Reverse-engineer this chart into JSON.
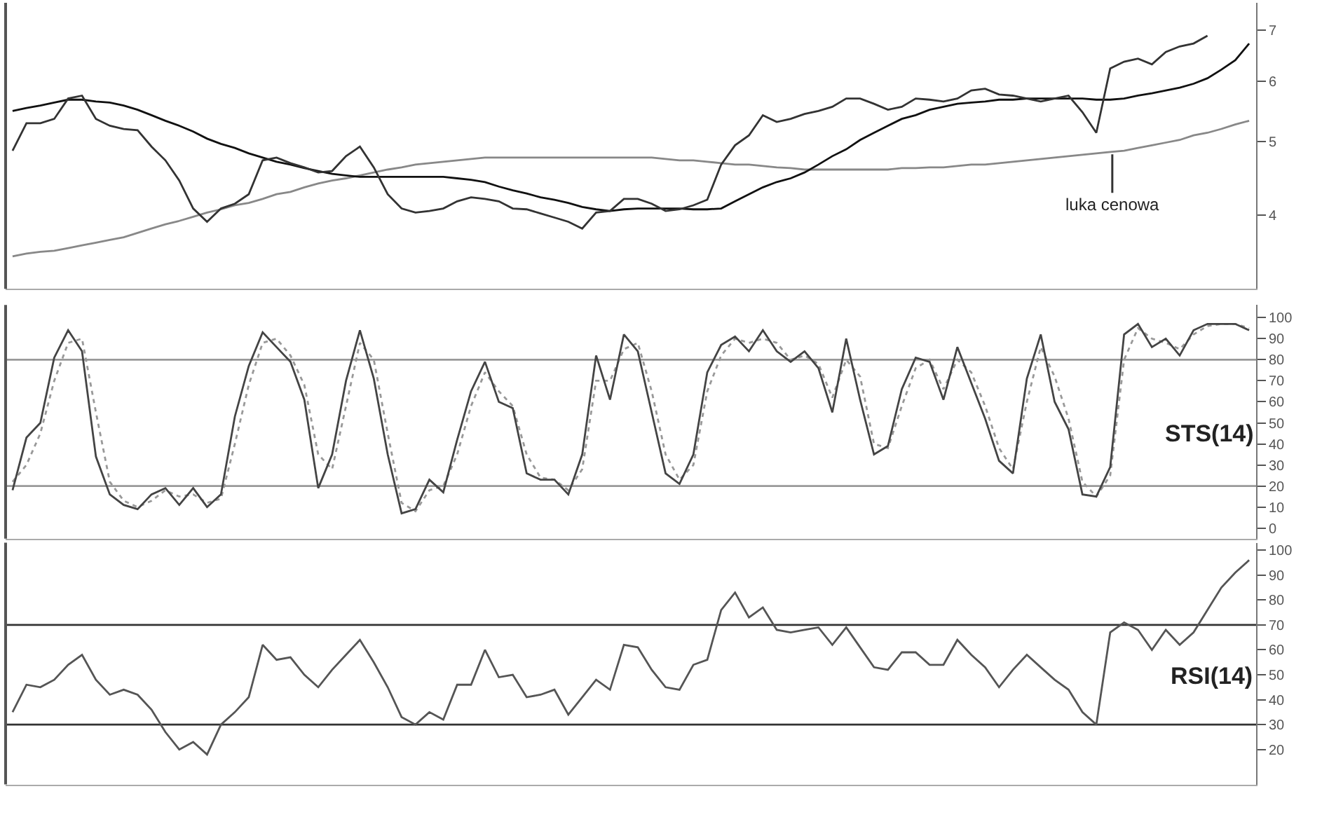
{
  "chart_data": [
    {
      "type": "line",
      "categories": [
        null,
        null,
        null,
        null,
        null,
        null,
        null,
        null,
        null,
        null,
        null,
        null,
        null,
        null,
        null,
        null,
        null,
        null,
        null,
        null,
        null,
        null,
        null,
        null,
        null,
        null,
        null,
        null,
        null,
        null,
        null,
        null,
        null,
        null,
        null,
        null,
        null,
        null,
        null,
        null,
        null,
        null,
        null,
        null,
        null,
        null,
        null,
        null,
        null,
        null,
        null,
        null,
        null,
        null,
        null,
        null,
        null,
        null,
        null,
        null,
        null,
        null,
        null,
        null,
        null,
        null,
        null,
        null,
        null,
        null,
        null,
        null,
        null,
        null,
        null,
        null,
        null,
        null,
        null,
        null,
        null,
        null,
        null,
        null,
        null,
        null,
        null,
        null,
        null,
        null
      ],
      "series": [
        {
          "color": "#888888",
          "values": [
            3.53,
            3.56,
            3.58,
            3.59,
            3.62,
            3.65,
            3.68,
            3.71,
            3.74,
            3.79,
            3.84,
            3.89,
            3.93,
            3.98,
            4.03,
            4.07,
            4.12,
            4.15,
            4.2,
            4.26,
            4.29,
            4.35,
            4.4,
            4.44,
            4.47,
            4.51,
            4.55,
            4.59,
            4.62,
            4.66,
            4.68,
            4.7,
            4.72,
            4.74,
            4.76,
            4.76,
            4.76,
            4.76,
            4.76,
            4.76,
            4.76,
            4.76,
            4.76,
            4.76,
            4.76,
            4.76,
            4.76,
            4.74,
            4.72,
            4.72,
            4.7,
            4.68,
            4.66,
            4.66,
            4.64,
            4.62,
            4.61,
            4.59,
            4.59,
            4.59,
            4.59,
            4.59,
            4.59,
            4.59,
            4.61,
            4.61,
            4.62,
            4.62,
            4.64,
            4.66,
            4.66,
            4.68,
            4.7,
            4.72,
            4.74,
            4.76,
            4.78,
            4.8,
            4.82,
            4.84,
            4.86,
            4.9,
            4.94,
            4.98,
            5.02,
            5.09,
            5.13,
            5.19,
            5.26,
            5.32
          ]
        },
        {
          "color": "#111111",
          "values": [
            5.48,
            5.53,
            5.57,
            5.62,
            5.67,
            5.67,
            5.64,
            5.62,
            5.57,
            5.5,
            5.41,
            5.32,
            5.24,
            5.15,
            5.04,
            4.96,
            4.9,
            4.82,
            4.76,
            4.7,
            4.66,
            4.61,
            4.57,
            4.53,
            4.51,
            4.49,
            4.49,
            4.49,
            4.49,
            4.49,
            4.49,
            4.49,
            4.47,
            4.45,
            4.42,
            4.36,
            4.31,
            4.27,
            4.22,
            4.19,
            4.15,
            4.1,
            4.07,
            4.05,
            4.07,
            4.08,
            4.08,
            4.08,
            4.08,
            4.07,
            4.07,
            4.08,
            4.17,
            4.26,
            4.35,
            4.42,
            4.47,
            4.55,
            4.66,
            4.78,
            4.88,
            5.02,
            5.13,
            5.24,
            5.35,
            5.41,
            5.5,
            5.55,
            5.6,
            5.62,
            5.64,
            5.67,
            5.67,
            5.69,
            5.69,
            5.69,
            5.69,
            5.69,
            5.67,
            5.67,
            5.69,
            5.74,
            5.78,
            5.83,
            5.88,
            5.95,
            6.05,
            6.21,
            6.39,
            6.72
          ]
        },
        {
          "color": "#333333",
          "values": [
            4.86,
            5.28,
            5.28,
            5.35,
            5.69,
            5.74,
            5.35,
            5.24,
            5.19,
            5.17,
            4.92,
            4.72,
            4.44,
            4.08,
            3.92,
            4.08,
            4.14,
            4.26,
            4.72,
            4.76,
            4.68,
            4.62,
            4.55,
            4.57,
            4.78,
            4.92,
            4.62,
            4.26,
            4.08,
            4.03,
            4.05,
            4.08,
            4.17,
            4.22,
            4.2,
            4.17,
            4.08,
            4.07,
            4.02,
            3.97,
            3.92,
            3.84,
            4.03,
            4.05,
            4.2,
            4.2,
            4.14,
            4.05,
            4.07,
            4.12,
            4.19,
            4.66,
            4.94,
            5.09,
            5.41,
            5.3,
            5.35,
            5.43,
            5.48,
            5.55,
            5.69,
            5.69,
            5.6,
            5.5,
            5.55,
            5.69,
            5.67,
            5.64,
            5.69,
            5.83,
            5.86,
            5.76,
            5.74,
            5.69,
            5.64,
            5.69,
            5.74,
            5.46,
            5.13,
            6.23,
            6.36,
            6.42,
            6.31,
            6.55,
            6.66,
            6.72,
            6.88,
            null,
            null,
            null
          ]
        }
      ],
      "log": true,
      "ylim": [
        3.2,
        7.6
      ],
      "yticks": [
        4,
        5,
        6,
        7
      ],
      "tick_labels": "y",
      "annotations": [
        "luka cenowa"
      ]
    },
    {
      "type": "line",
      "title": "STS(14)",
      "categories": [
        null,
        null,
        null,
        null,
        null,
        null,
        null,
        null,
        null,
        null,
        null,
        null,
        null,
        null,
        null,
        null,
        null,
        null,
        null,
        null,
        null,
        null,
        null,
        null,
        null,
        null,
        null,
        null,
        null,
        null,
        null,
        null,
        null,
        null,
        null,
        null,
        null,
        null,
        null,
        null,
        null,
        null,
        null,
        null,
        null,
        null,
        null,
        null,
        null,
        null,
        null,
        null,
        null,
        null,
        null,
        null,
        null,
        null,
        null,
        null,
        null,
        null,
        null,
        null,
        null,
        null,
        null,
        null,
        null,
        null,
        null,
        null,
        null,
        null,
        null,
        null,
        null,
        null,
        null,
        null,
        null,
        null,
        null,
        null,
        null,
        null,
        null,
        null,
        null,
        null
      ],
      "series": [
        {
          "color": "#999999",
          "line_style": "dotted",
          "values": [
            22,
            30,
            45,
            70,
            88,
            90,
            55,
            22,
            13,
            10,
            13,
            18,
            15,
            16,
            12,
            14,
            40,
            68,
            88,
            90,
            82,
            68,
            35,
            28,
            58,
            88,
            80,
            45,
            12,
            8,
            18,
            20,
            35,
            58,
            74,
            65,
            58,
            35,
            24,
            23,
            18,
            28,
            70,
            70,
            85,
            88,
            65,
            35,
            23,
            30,
            65,
            82,
            90,
            88,
            90,
            88,
            80,
            82,
            78,
            62,
            80,
            72,
            40,
            38,
            58,
            76,
            80,
            66,
            80,
            74,
            58,
            38,
            28,
            60,
            86,
            72,
            52,
            22,
            15,
            25,
            80,
            95,
            90,
            88,
            85,
            92,
            96,
            97,
            97,
            95
          ]
        },
        {
          "color": "#444444",
          "line_style": "solid",
          "values": [
            18,
            43,
            50,
            81,
            94,
            84,
            34,
            16,
            11,
            9,
            16,
            19,
            11,
            19,
            10,
            16,
            53,
            77,
            93,
            86,
            79,
            61,
            19,
            35,
            70,
            94,
            71,
            35,
            7,
            9,
            23,
            17,
            42,
            65,
            79,
            60,
            57,
            26,
            23,
            23,
            16,
            35,
            82,
            61,
            92,
            84,
            55,
            26,
            21,
            35,
            74,
            87,
            91,
            84,
            94,
            84,
            79,
            84,
            76,
            55,
            90,
            61,
            35,
            39,
            66,
            81,
            79,
            61,
            86,
            69,
            52,
            32,
            26,
            71,
            92,
            60,
            47,
            16,
            15,
            29,
            92,
            97,
            86,
            90,
            82,
            94,
            97,
            97,
            97,
            94
          ]
        }
      ],
      "ylim": [
        -5,
        106
      ],
      "yticks": [
        0,
        10,
        20,
        30,
        40,
        50,
        60,
        70,
        80,
        90,
        100
      ],
      "tick_labels": "y",
      "ref_lines": [
        {
          "axis": "y",
          "value": 80,
          "color": "#999999"
        },
        {
          "axis": "y",
          "value": 20,
          "color": "#999999"
        }
      ]
    },
    {
      "type": "line",
      "title": "RSI(14)",
      "categories": [
        null,
        null,
        null,
        null,
        null,
        null,
        null,
        null,
        null,
        null,
        null,
        null,
        null,
        null,
        null,
        null,
        null,
        null,
        null,
        null,
        null,
        null,
        null,
        null,
        null,
        null,
        null,
        null,
        null,
        null,
        null,
        null,
        null,
        null,
        null,
        null,
        null,
        null,
        null,
        null,
        null,
        null,
        null,
        null,
        null,
        null,
        null,
        null,
        null,
        null,
        null,
        null,
        null,
        null,
        null,
        null,
        null,
        null,
        null,
        null,
        null,
        null,
        null,
        null,
        null,
        null,
        null,
        null,
        null,
        null,
        null,
        null,
        null,
        null,
        null,
        null,
        null,
        null,
        null,
        null,
        null,
        null,
        null,
        null,
        null,
        null,
        null,
        null,
        null,
        null
      ],
      "series": [
        {
          "color": "#555555",
          "values": [
            35,
            46,
            45,
            48,
            54,
            58,
            48,
            42,
            44,
            42,
            36,
            27,
            20,
            23,
            18,
            30,
            35,
            41,
            62,
            56,
            57,
            50,
            45,
            52,
            58,
            64,
            55,
            45,
            33,
            30,
            35,
            32,
            46,
            46,
            60,
            49,
            50,
            41,
            42,
            44,
            34,
            41,
            48,
            44,
            62,
            61,
            52,
            45,
            44,
            54,
            56,
            76,
            83,
            73,
            77,
            68,
            67,
            68,
            69,
            62,
            69,
            61,
            53,
            52,
            59,
            59,
            54,
            54,
            64,
            58,
            53,
            45,
            52,
            58,
            53,
            48,
            44,
            35,
            30,
            67,
            71,
            68,
            60,
            68,
            62,
            67,
            76,
            85,
            91,
            96
          ]
        }
      ],
      "ylim": [
        6,
        103
      ],
      "yticks": [
        20,
        30,
        40,
        50,
        60,
        70,
        80,
        90,
        100
      ],
      "tick_labels": "y",
      "ref_lines": [
        {
          "axis": "y",
          "value": 70,
          "color": "#333333"
        },
        {
          "axis": "y",
          "value": 30,
          "color": "#333333"
        }
      ]
    }
  ]
}
